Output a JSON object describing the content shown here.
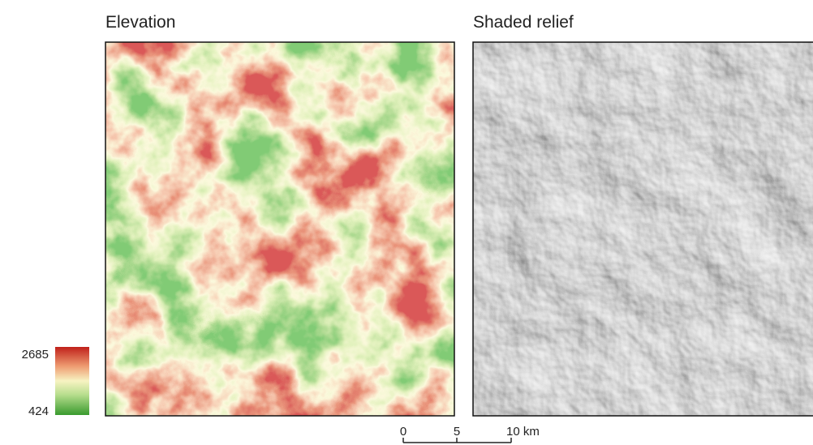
{
  "panels": [
    {
      "title": "Elevation"
    },
    {
      "title": "Shaded relief"
    }
  ],
  "legend": {
    "max": 2685,
    "min": 424
  },
  "scale_bar": {
    "labels": [
      "0",
      "5",
      "10 km"
    ]
  }
}
